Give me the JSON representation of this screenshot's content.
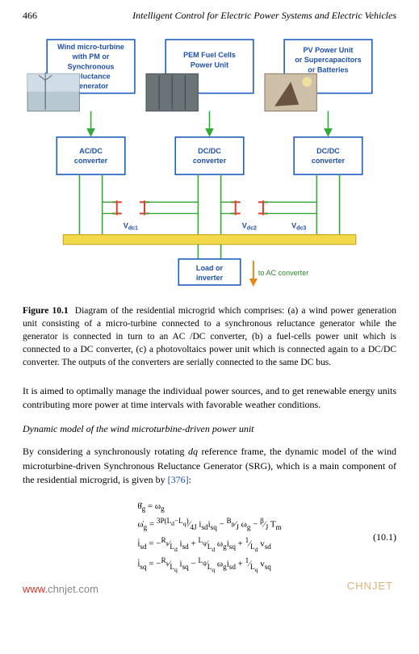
{
  "header": {
    "page_number": "466",
    "running_title": "Intelligent Control for Electric Power Systems and Electric Vehicles"
  },
  "diagram": {
    "box_stroke": "#1f5fbf",
    "box_fill": "#ffffff",
    "wire_green": "#33aa33",
    "bus_yellow": "#f2d94a",
    "cap_red": "#e43c2e",
    "arrow_orange": "#e28a1c",
    "top_boxes": [
      {
        "lines": [
          "Wind micro-turbine",
          "with PM or",
          "Synchronous",
          "Reluctance",
          "Generator"
        ]
      },
      {
        "lines": [
          "PEM Fuel Cells",
          "Power Unit"
        ]
      },
      {
        "lines": [
          "PV Power Unit",
          "or Supercapacitors",
          "or Batteries"
        ]
      }
    ],
    "converter_boxes": [
      {
        "lines": [
          "AC/DC",
          "converter"
        ]
      },
      {
        "lines": [
          "DC/DC",
          "converter"
        ]
      },
      {
        "lines": [
          "DC/DC",
          "converter"
        ]
      }
    ],
    "v_labels": [
      "V_dc1",
      "V_dc2",
      "V_dc3"
    ],
    "load_box": {
      "lines": [
        "Load or",
        "inverter"
      ]
    },
    "ac_label": "to AC converter"
  },
  "caption": {
    "label": "Figure 10.1",
    "text": "Diagram of the residential microgrid which comprises: (a) a wind power generation unit consisting of a micro-turbine connected to a synchronous reluctance generator while the generator is connected in turn to an AC /DC converter, (b) a fuel-cells power unit which is connected to a DC converter, (c) a photovoltaics power unit which is connected again to a DC/DC converter. The outputs of the converters are serially connected to the same DC bus."
  },
  "body": {
    "para1": "It is aimed to optimally manage the individual power sources, and to get renewable energy units contributing more power at time intervals with favorable weather conditions.",
    "subhead": "Dynamic model of the wind microturbine-driven power unit",
    "para2_pre": "By considering a synchronously rotating ",
    "para2_dq": "dq",
    "para2_mid": " reference frame, the dynamic model of the wind microturbine-driven Synchronous Reluctance Generator (SRG), which is a main component of the residential microgrid, is given by ",
    "para2_ref": "[376]",
    "para2_post": ":"
  },
  "equations": {
    "lines_html": [
      "θ̇<sub>g</sub> = ω<sub>g</sub>",
      "ω̇<sub>g</sub> = <sup>3P(L<sub>d</sub>−L<sub>q</sub>)</sup>&frasl;<sub>4J</sub> i<sub>sd</sub>i<sub>sq</sub> − <sup>B<sub>p</sub></sup>&frasl;<sub>J</sub> ω<sub>g</sub> − <sup>β</sup>&frasl;<sub>J</sub> T<sub>m</sub>",
      "i̇<sub>sd</sub> = −<sup>R<sub>s</sub></sup>&frasl;<sub>L<sub>d</sub></sub> i<sub>sd</sub> + <sup>L<sub>q</sub></sup>&frasl;<sub>L<sub>d</sub></sub> ω<sub>g</sub>i<sub>sq</sub> + <sup>1</sup>&frasl;<sub>L<sub>d</sub></sub> v<sub>sd</sub>",
      "i̇<sub>sq</sub> = −<sup>R<sub>s</sub></sup>&frasl;<sub>L<sub>q</sub></sub> i<sub>sq</sub> − <sup>L<sub>d</sub></sup>&frasl;<sub>L<sub>q</sub></sub> ω<sub>g</sub>i<sub>sd</sub> + <sup>1</sup>&frasl;<sub>L<sub>q</sub></sub> v<sub>sq</sub>"
    ],
    "number": "(10.1)"
  },
  "watermarks": {
    "wm1_red": "www.",
    "wm1_gray": "chnjet.com",
    "wm2": "CHNJET"
  }
}
